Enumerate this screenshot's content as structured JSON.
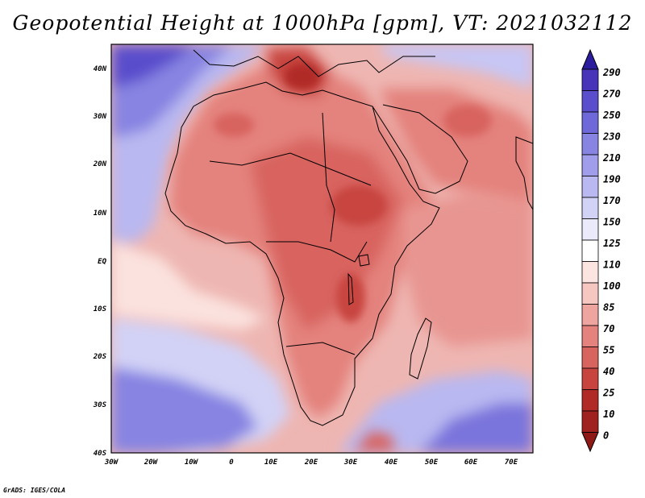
{
  "title": "Geopotential Height at 1000hPa [gpm], VT: 2021032112",
  "footer": "GrADS: IGES/COLA",
  "map": {
    "lon_range": [
      -30,
      76
    ],
    "lat_range": [
      -40,
      46
    ],
    "lon_ticks": [
      "30W",
      "20W",
      "10W",
      "0",
      "10E",
      "20E",
      "30E",
      "40E",
      "50E",
      "60E",
      "70E"
    ],
    "lat_ticks": [
      "40N",
      "30N",
      "20N",
      "10N",
      "EQ",
      "10S",
      "20S",
      "30S",
      "40S"
    ],
    "ocean_color": "#ecb0ac"
  },
  "colorbar": {
    "labels": [
      "290",
      "270",
      "250",
      "230",
      "210",
      "190",
      "170",
      "150",
      "125",
      "110",
      "100",
      "85",
      "70",
      "55",
      "40",
      "25",
      "10",
      "0"
    ],
    "colors": [
      "#2a1c9c",
      "#4734b8",
      "#5a4ecc",
      "#6f68d8",
      "#8784e2",
      "#a09eea",
      "#b9b8f0",
      "#d2d2f6",
      "#eaeafb",
      "#ffffff",
      "#fce4e1",
      "#f6c6c1",
      "#eea5a0",
      "#e4827d",
      "#d8645f",
      "#c8443f",
      "#b02a26",
      "#8e1a18"
    ]
  }
}
